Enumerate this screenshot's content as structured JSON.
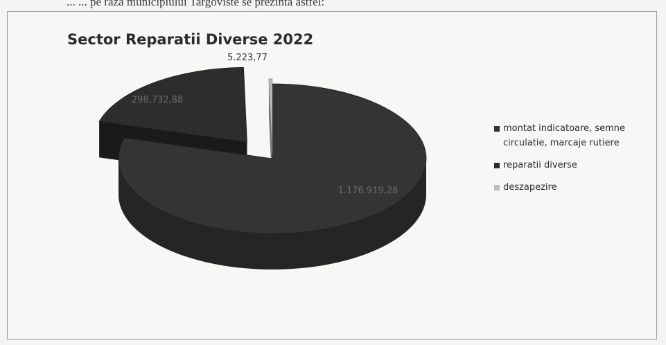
{
  "document": {
    "top_text": "... ... pe raza municipiului Targoviste se prezinta astfel:"
  },
  "chart_data": {
    "type": "pie",
    "title": "Sector Reparatii Diverse 2022",
    "categories": [
      "montat indicatoare, semne circulatie, marcaje rutiere",
      "reparatii diverse",
      "deszapezire"
    ],
    "values": [
      1176919.28,
      298732.88,
      5223.77
    ],
    "data_labels": [
      "1.176.919,28",
      "298.732,88",
      "5.223,77"
    ],
    "colors": [
      "#333333",
      "#2b2b2b",
      "#bdbdbd"
    ],
    "pie_style": "3d-exploded",
    "legend_position": "right"
  }
}
